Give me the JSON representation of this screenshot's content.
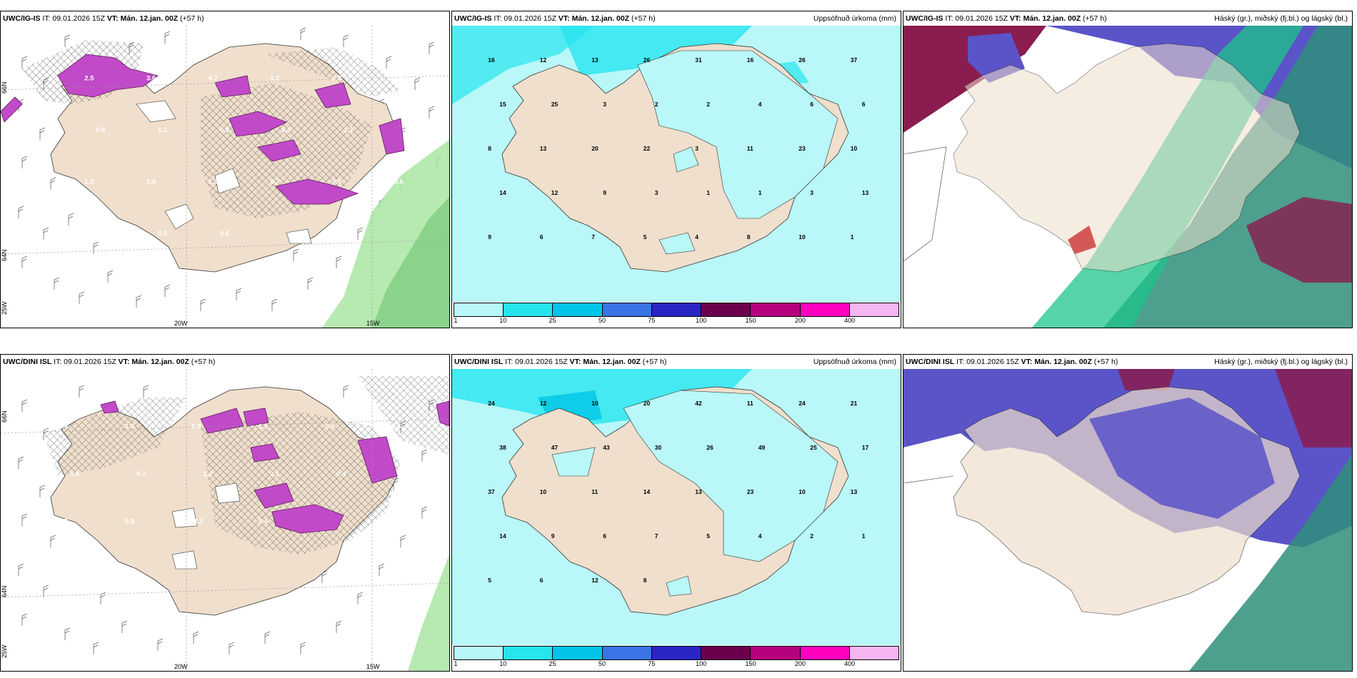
{
  "panels": [
    {
      "id": "p1",
      "model": "UWC/IG-IS",
      "it": "IT: 09.01.2026 15Z",
      "vt": "VT: Mán. 12.jan. 00Z",
      "lead": "(+57 h)",
      "right": ""
    },
    {
      "id": "p2",
      "model": "UWC/IG-IS",
      "it": "IT: 09.01.2026 15Z",
      "vt": "VT: Mán. 12.jan. 00Z",
      "lead": "(+57 h)",
      "right": "Uppsöfnuð úrkoma (mm)"
    },
    {
      "id": "p3",
      "model": "UWC/IG-IS",
      "it": "IT: 09.01.2026 15Z",
      "vt": "VT: Mán. 12.jan. 00Z",
      "lead": "(+57 h)",
      "right": "Háský (gr.), miðský (fj.bl.) og lágský (bl.)"
    },
    {
      "id": "p4",
      "model": "UWC/DINI ISL",
      "it": "IT: 09.01.2026 15Z",
      "vt": "VT: Mán. 12.jan. 00Z",
      "lead": "(+57 h)",
      "right": ""
    },
    {
      "id": "p5",
      "model": "UWC/DINI ISL",
      "it": "IT: 09.01.2026 15Z",
      "vt": "VT: Mán. 12.jan. 00Z",
      "lead": "(+57 h)",
      "right": "Uppsöfnuð úrkoma (mm)"
    },
    {
      "id": "p6",
      "model": "UWC/DINI ISL",
      "it": "IT: 09.01.2026 15Z",
      "vt": "VT: Mán. 12.jan. 00Z",
      "lead": "(+57 h)",
      "right": "Háský (gr.), miðský (fj.bl.) og lágský (bl.)"
    }
  ],
  "grid_labels": {
    "w20": "20W",
    "w15": "15W",
    "w25": "25W",
    "n66": "66N",
    "n64": "64N"
  },
  "colorbar": {
    "ticks": [
      "1",
      "10",
      "25",
      "50",
      "75",
      "100",
      "150",
      "200",
      "400"
    ],
    "colors": [
      "#b9f7f8",
      "#27e5ef",
      "#00c5e6",
      "#3a74e6",
      "#2a26c6",
      "#6b004d",
      "#b5007e",
      "#ff00bf",
      "#f5b6f2"
    ]
  },
  "p1_labels": [
    "2.5",
    "3.6",
    "4.7",
    "1.2",
    "2.8",
    "1.5",
    "0.6",
    "1.1",
    "0.8",
    "0.9",
    "1.3",
    "1.1",
    "1.2",
    "1.6",
    "1.3",
    "0.7",
    "0.5",
    "0.6",
    "0.5",
    "0.6",
    "0.6"
  ],
  "p4_labels": [
    "0.4",
    "1.3",
    "0.8",
    "1.1",
    "0.4",
    "0.6",
    "0.5",
    "0.7",
    "1.2",
    "2.1",
    "0.4",
    "0.2",
    "0.7",
    "0.8",
    "-1.1",
    "0.4"
  ],
  "p2_labels": [
    "16",
    "12",
    "13",
    "26",
    "31",
    "16",
    "26",
    "37",
    "15",
    "25",
    "3",
    "2",
    "2",
    "4",
    "6",
    "6",
    "8",
    "13",
    "20",
    "22",
    "3",
    "11",
    "23",
    "10",
    "14",
    "12",
    "9",
    "3",
    "1",
    "1",
    "3",
    "13",
    "9",
    "6",
    "7",
    "5",
    "4",
    "8",
    "10",
    "1"
  ],
  "p5_labels": [
    "24",
    "12",
    "10",
    "20",
    "42",
    "11",
    "24",
    "21",
    "38",
    "47",
    "43",
    "30",
    "26",
    "49",
    "25",
    "17",
    "37",
    "10",
    "11",
    "14",
    "13",
    "23",
    "10",
    "13",
    "14",
    "9",
    "6",
    "7",
    "5",
    "4",
    "2",
    "1",
    "5",
    "6",
    "12",
    "8"
  ],
  "colors": {
    "land": "#efdfcc",
    "coast": "#333333",
    "hatch": "#2c2c2c",
    "cloud_high": "#1ec48a",
    "cloud_mid": "#4b45c4",
    "cloud_low": "#8a1c4f",
    "snow": "#c14ac8",
    "wind_barb": "#555555"
  }
}
